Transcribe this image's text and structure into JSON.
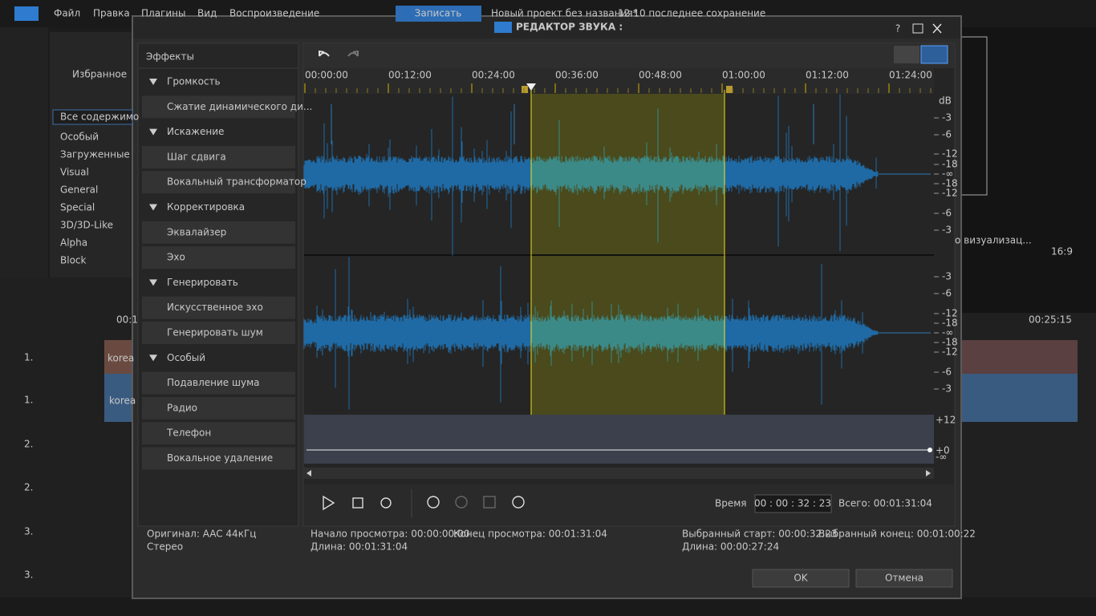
{
  "app": {
    "menu": [
      "Файл",
      "Правка",
      "Плагины",
      "Вид",
      "Воспроизведение"
    ],
    "record_button": "Записать",
    "project_title": "Новый проект без названия*",
    "save_status": "12:10 последнее сохранение",
    "library": {
      "favorites": "Избранное",
      "all_content": "Все содержимо",
      "categories": [
        "Особый",
        "Загруженные",
        "Visual",
        "General",
        "Special",
        "3D/3D-Like",
        "Alpha",
        "Block"
      ]
    },
    "preview": {
      "render_button": "о визуализац...",
      "aspect": "16:9"
    },
    "timeline": {
      "timecodes": [
        "00:1",
        "00:25:15"
      ],
      "tracks": [
        "1.",
        "1.",
        "2.",
        "2.",
        "3.",
        "3."
      ],
      "clips": [
        "korea",
        "korea"
      ]
    }
  },
  "dialog": {
    "title": "РЕДАКТОР ЗВУКА :",
    "effects": {
      "header": "Эффекты",
      "groups": [
        {
          "name": "Громкость",
          "items": [
            "Сжатие динамического ди..."
          ]
        },
        {
          "name": "Искажение",
          "items": [
            "Шаг сдвига",
            "Вокальный трансформатор"
          ]
        },
        {
          "name": "Корректировка",
          "items": [
            "Эквалайзер",
            "Эхо"
          ]
        },
        {
          "name": "Генерировать",
          "items": [
            "Искусственное эхо",
            "Генерировать шум"
          ]
        },
        {
          "name": "Особый",
          "items": [
            "Подавление шума",
            "Радио",
            "Телефон",
            "Вокальное удаление"
          ]
        }
      ]
    },
    "ruler": [
      "00:00:00",
      "00:12:00",
      "00:24:00",
      "00:36:00",
      "00:48:00",
      "01:00:00",
      "01:12:00",
      "01:24:00"
    ],
    "db_unit": "dB",
    "channels": [
      {
        "labels": [
          "-3",
          "-6",
          "-12",
          "-18",
          "-∞",
          "-18",
          "-12",
          "-6",
          "-3"
        ]
      },
      {
        "labels": [
          "-3",
          "-6",
          "-12",
          "-18",
          "-∞",
          "-18",
          "-12",
          "-6",
          "-3"
        ]
      }
    ],
    "volume_scale": [
      "+12",
      "+0",
      "-∞"
    ],
    "controls": {
      "time_label": "Время",
      "time_value": "00 : 00 : 32 : 23",
      "total": "Всего: 00:01:31:04"
    },
    "info": {
      "original": "Оригинал: AAC 44кГц",
      "channels": "Стерео",
      "preview_start": "Начало просмотра: 00:00:00:00",
      "preview_end": "Конец просмотра: 00:01:31:04",
      "preview_length": "Длина: 00:01:31:04",
      "selected_start": "Выбранный старт: 00:00:32:23",
      "selected_end": "Выбранный конец: 00:01:00:22",
      "selected_length": "Длина: 00:00:27:24"
    },
    "buttons": {
      "ok": "OK",
      "cancel": "Отмена"
    }
  }
}
